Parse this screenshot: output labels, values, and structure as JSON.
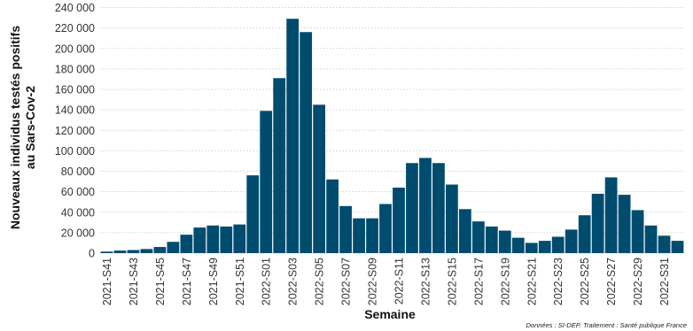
{
  "chart_data": {
    "type": "bar",
    "title": "",
    "xlabel": "Semaine",
    "ylabel": [
      "Nouveaux individus testés positifs",
      "au Sars-Cov-2"
    ],
    "ylim": [
      0,
      240000
    ],
    "yticks": [
      "0",
      "20 000",
      "40 000",
      "60 000",
      "80 000",
      "100 000",
      "120 000",
      "140 000",
      "160 000",
      "180 000",
      "200 000",
      "220 000",
      "240 000"
    ],
    "grid": true,
    "bar_color": "#004c6f",
    "categories": [
      "2021-S41",
      "2021-S42",
      "2021-S43",
      "2021-S44",
      "2021-S45",
      "2021-S46",
      "2021-S47",
      "2021-S48",
      "2021-S49",
      "2021-S50",
      "2021-S51",
      "2021-S52",
      "2022-S01",
      "2022-S02",
      "2022-S03",
      "2022-S04",
      "2022-S05",
      "2022-S06",
      "2022-S07",
      "2022-S08",
      "2022-S09",
      "2022-S10",
      "2022-S11",
      "2022-S12",
      "2022-S13",
      "2022-S14",
      "2022-S15",
      "2022-S16",
      "2022-S17",
      "2022-S18",
      "2022-S19",
      "2022-S20",
      "2022-S21",
      "2022-S22",
      "2022-S23",
      "2022-S24",
      "2022-S25",
      "2022-S26",
      "2022-S27",
      "2022-S28",
      "2022-S29",
      "2022-S30",
      "2022-S31",
      "2022-S32"
    ],
    "shown_tick_labels": [
      "2021-S41",
      "2021-S43",
      "2021-S45",
      "2021-S47",
      "2021-S49",
      "2021-S51",
      "2022-S01",
      "2022-S03",
      "2022-S05",
      "2022-S07",
      "2022-S09",
      "2022-S11",
      "2022-S13",
      "2022-S15",
      "2022-S17",
      "2022-S19",
      "2022-S21",
      "2022-S23",
      "2022-S25",
      "2022-S27",
      "2022-S29",
      "2022-S31"
    ],
    "values": [
      1500,
      2500,
      3000,
      4000,
      6000,
      11000,
      18000,
      25000,
      27000,
      26000,
      28000,
      76000,
      139000,
      171000,
      229000,
      216000,
      145000,
      72000,
      46000,
      34000,
      34000,
      48000,
      64000,
      88000,
      93000,
      88000,
      67000,
      43000,
      31000,
      26000,
      22000,
      15000,
      10000,
      12000,
      16000,
      23000,
      37000,
      58000,
      74000,
      57000,
      42000,
      27000,
      17000,
      12000
    ]
  },
  "source_note": "Données : SI-DEP. Traitement : Santé publique France"
}
